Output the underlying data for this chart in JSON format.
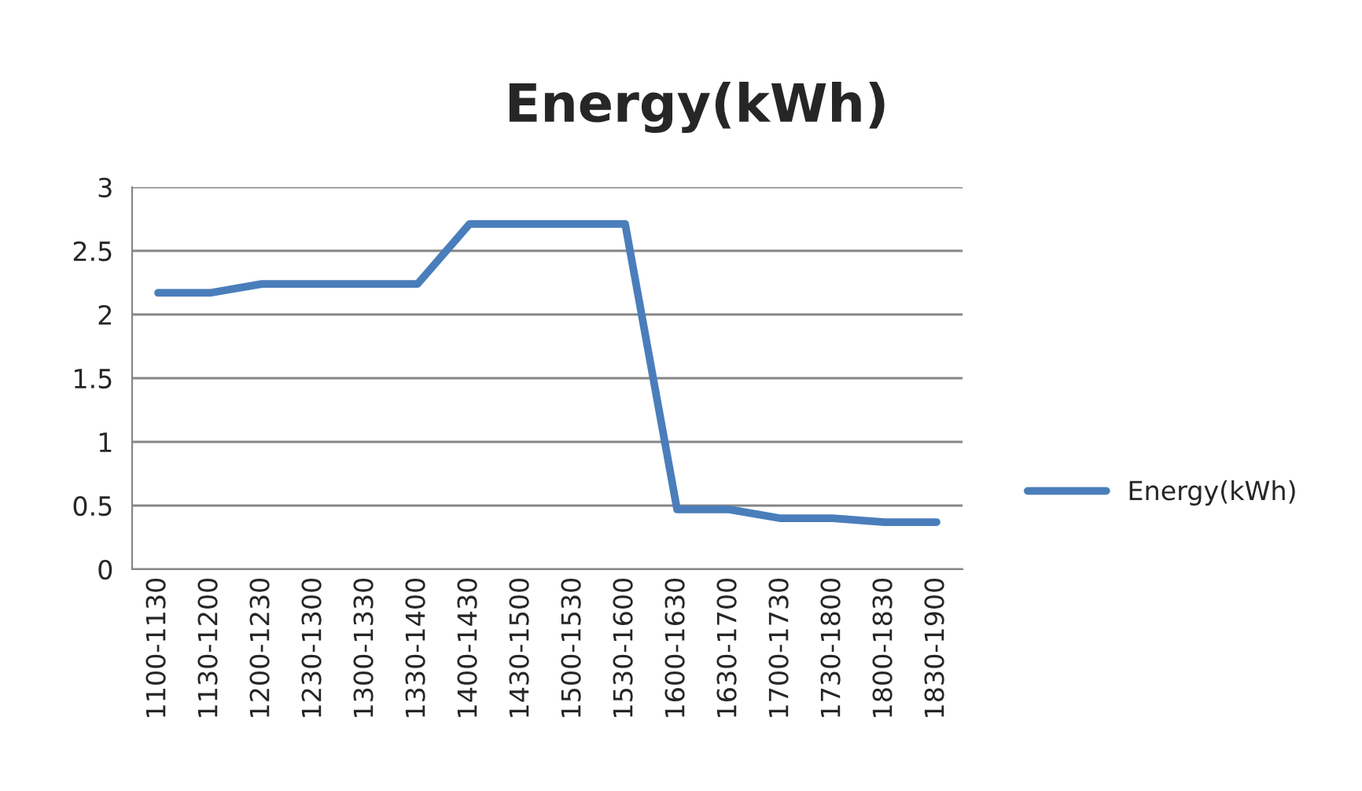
{
  "chart_data": {
    "type": "line",
    "title": "Energy(kWh)",
    "categories": [
      "1100-1130",
      "1130-1200",
      "1200-1230",
      "1230-1300",
      "1300-1330",
      "1330-1400",
      "1400-1430",
      "1430-1500",
      "1500-1530",
      "1530-1600",
      "1600-1630",
      "1630-1700",
      "1700-1730",
      "1730-1800",
      "1800-1830",
      "1830-1900"
    ],
    "series": [
      {
        "name": "Energy(kWh)",
        "color": "#4a7ebb",
        "values": [
          2.17,
          2.17,
          2.24,
          2.24,
          2.24,
          2.24,
          2.71,
          2.71,
          2.71,
          2.71,
          0.47,
          0.47,
          0.4,
          0.4,
          0.37,
          0.37
        ]
      }
    ],
    "ylim": [
      0,
      3
    ],
    "yticks": [
      0,
      0.5,
      1,
      1.5,
      2,
      2.5,
      3
    ],
    "grid": "y",
    "legend": "right",
    "marker": "none",
    "line_style": "solid"
  }
}
